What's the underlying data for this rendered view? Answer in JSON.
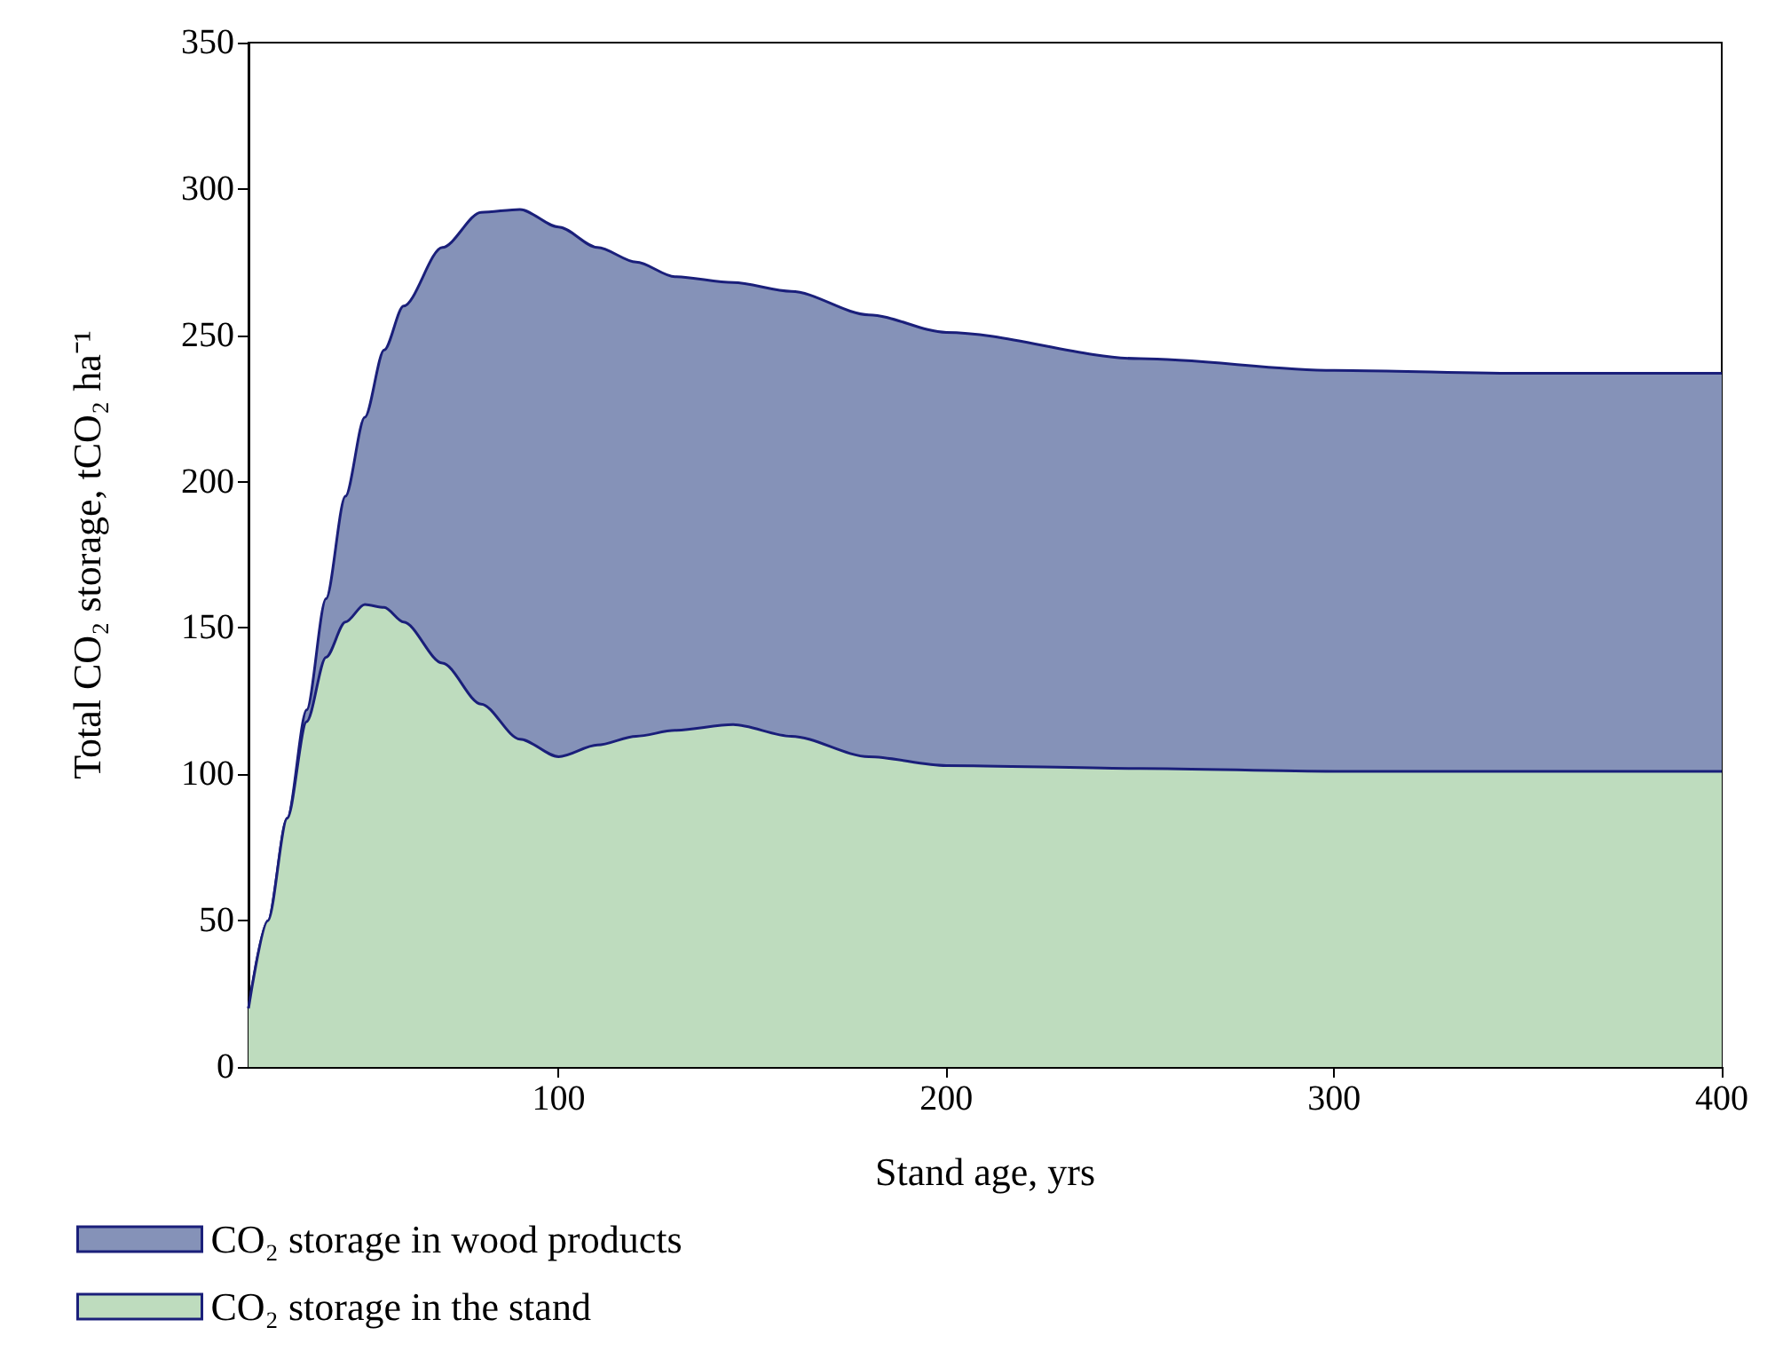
{
  "chart_data": {
    "type": "area",
    "stacked": true,
    "xlabel": "Stand age, yrs",
    "ylabel": "Total CO₂ storage, tCO₂ ha⁻¹",
    "x": [
      20,
      25,
      30,
      35,
      40,
      45,
      50,
      55,
      60,
      70,
      80,
      90,
      100,
      110,
      120,
      130,
      145,
      160,
      180,
      200,
      250,
      300,
      350,
      400
    ],
    "series": [
      {
        "name": "CO₂ storage in the stand",
        "color": "#bedcbe",
        "values": [
          20,
          50,
          85,
          118,
          140,
          152,
          158,
          157,
          152,
          138,
          124,
          112,
          106,
          110,
          113,
          115,
          117,
          113,
          106,
          103,
          102,
          101,
          101,
          101
        ]
      },
      {
        "name": "CO₂ storage in wood products",
        "color": "#8592b8",
        "values": [
          0,
          0,
          0,
          4,
          20,
          43,
          64,
          88,
          108,
          142,
          168,
          181,
          181,
          170,
          162,
          155,
          151,
          152,
          151,
          148,
          140,
          137,
          136,
          136
        ]
      }
    ],
    "xlim": [
      20,
      400
    ],
    "xticks": [
      100,
      200,
      300,
      400
    ],
    "ylim": [
      0,
      350
    ],
    "yticks": [
      0,
      50,
      100,
      150,
      200,
      250,
      300,
      350
    ],
    "grid": false,
    "legend": "bottom left"
  }
}
